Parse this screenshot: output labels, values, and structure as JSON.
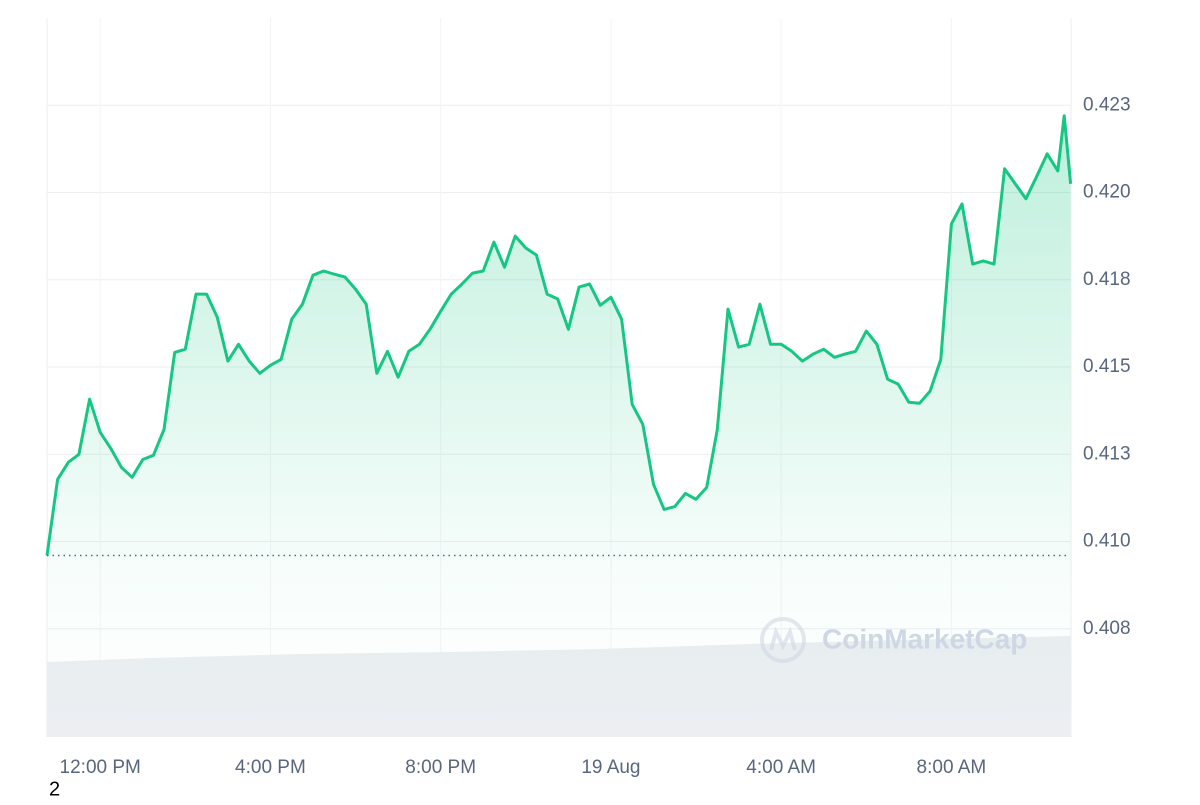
{
  "chart_data": {
    "type": "area",
    "x": [
      -1.25,
      -1,
      -0.75,
      -0.5,
      -0.25,
      0,
      0.25,
      0.5,
      0.75,
      1,
      1.25,
      1.5,
      1.75,
      2,
      2.25,
      2.5,
      2.75,
      3,
      3.25,
      3.5,
      3.75,
      4,
      4.25,
      4.5,
      4.75,
      5,
      5.25,
      5.5,
      5.75,
      6,
      6.25,
      6.5,
      6.75,
      7,
      7.25,
      7.5,
      7.75,
      8,
      8.25,
      8.5,
      8.75,
      9,
      9.25,
      9.5,
      9.75,
      10,
      10.25,
      10.5,
      10.75,
      11,
      11.25,
      11.5,
      11.75,
      12,
      12.25,
      12.5,
      12.75,
      13,
      13.25,
      13.5,
      13.75,
      14,
      14.25,
      14.5,
      14.75,
      15,
      15.25,
      15.5,
      15.75,
      16,
      16.25,
      16.5,
      16.75,
      17,
      17.25,
      17.5,
      17.75,
      18,
      18.25,
      18.5,
      18.75,
      19,
      19.25,
      19.5,
      19.75,
      20,
      20.25,
      20.5,
      20.75,
      21,
      21.25,
      21.5,
      21.75,
      22,
      22.25,
      22.5,
      22.65,
      22.8
    ],
    "series": [
      {
        "color": "#16c784",
        "values": [
          0.4096,
          0.41178,
          0.41227,
          0.4125,
          0.41408,
          0.41313,
          0.41267,
          0.41212,
          0.41184,
          0.41235,
          0.41247,
          0.41321,
          0.41542,
          0.41551,
          0.41709,
          0.41709,
          0.41643,
          0.41517,
          0.41565,
          0.41517,
          0.41482,
          0.41505,
          0.41522,
          0.41637,
          0.4168,
          0.41763,
          0.41775,
          0.41766,
          0.41758,
          0.41723,
          0.4168,
          0.41482,
          0.41545,
          0.41471,
          0.41545,
          0.41565,
          0.41608,
          0.4166,
          0.41709,
          0.41738,
          0.41769,
          0.41775,
          0.41858,
          0.41786,
          0.41875,
          0.41841,
          0.41821,
          0.41709,
          0.41695,
          0.41608,
          0.41729,
          0.41738,
          0.41677,
          0.417,
          0.41637,
          0.41393,
          0.41336,
          0.41164,
          0.41092,
          0.411,
          0.41138,
          0.41121,
          0.41155,
          0.41321,
          0.41666,
          0.41557,
          0.41565,
          0.4168,
          0.41565,
          0.41565,
          0.41545,
          0.41517,
          0.41537,
          0.41551,
          0.41528,
          0.41537,
          0.41545,
          0.41603,
          0.41565,
          0.41465,
          0.41451,
          0.41399,
          0.41396,
          0.41431,
          0.41522,
          0.4191,
          0.41967,
          0.41795,
          0.41804,
          0.41795,
          0.42068,
          0.42025,
          0.41982,
          0.42045,
          0.42111,
          0.42062,
          0.4222,
          0.42025
        ]
      }
    ],
    "xlim": [
      -1.25,
      22.81
    ],
    "xticks": [
      {
        "value": 0,
        "label": "12:00 PM"
      },
      {
        "value": 4,
        "label": "4:00 PM"
      },
      {
        "value": 8,
        "label": "8:00 PM"
      },
      {
        "value": 12,
        "label": "19 Aug"
      },
      {
        "value": 16,
        "label": "4:00 AM"
      },
      {
        "value": 20,
        "label": "8:00 AM"
      }
    ],
    "ylim": [
      0.4044,
      0.425
    ],
    "yticks": [
      {
        "value": 0.4075,
        "label": "0.408"
      },
      {
        "value": 0.41,
        "label": "0.410"
      },
      {
        "value": 0.4125,
        "label": "0.413"
      },
      {
        "value": 0.415,
        "label": "0.415"
      },
      {
        "value": 0.4175,
        "label": "0.418"
      },
      {
        "value": 0.42,
        "label": "0.420"
      },
      {
        "value": 0.4225,
        "label": "0.423"
      }
    ],
    "reference_line": 0.4096,
    "grid": true,
    "watermark": "CoinMarketCap",
    "footer_text": "2"
  }
}
